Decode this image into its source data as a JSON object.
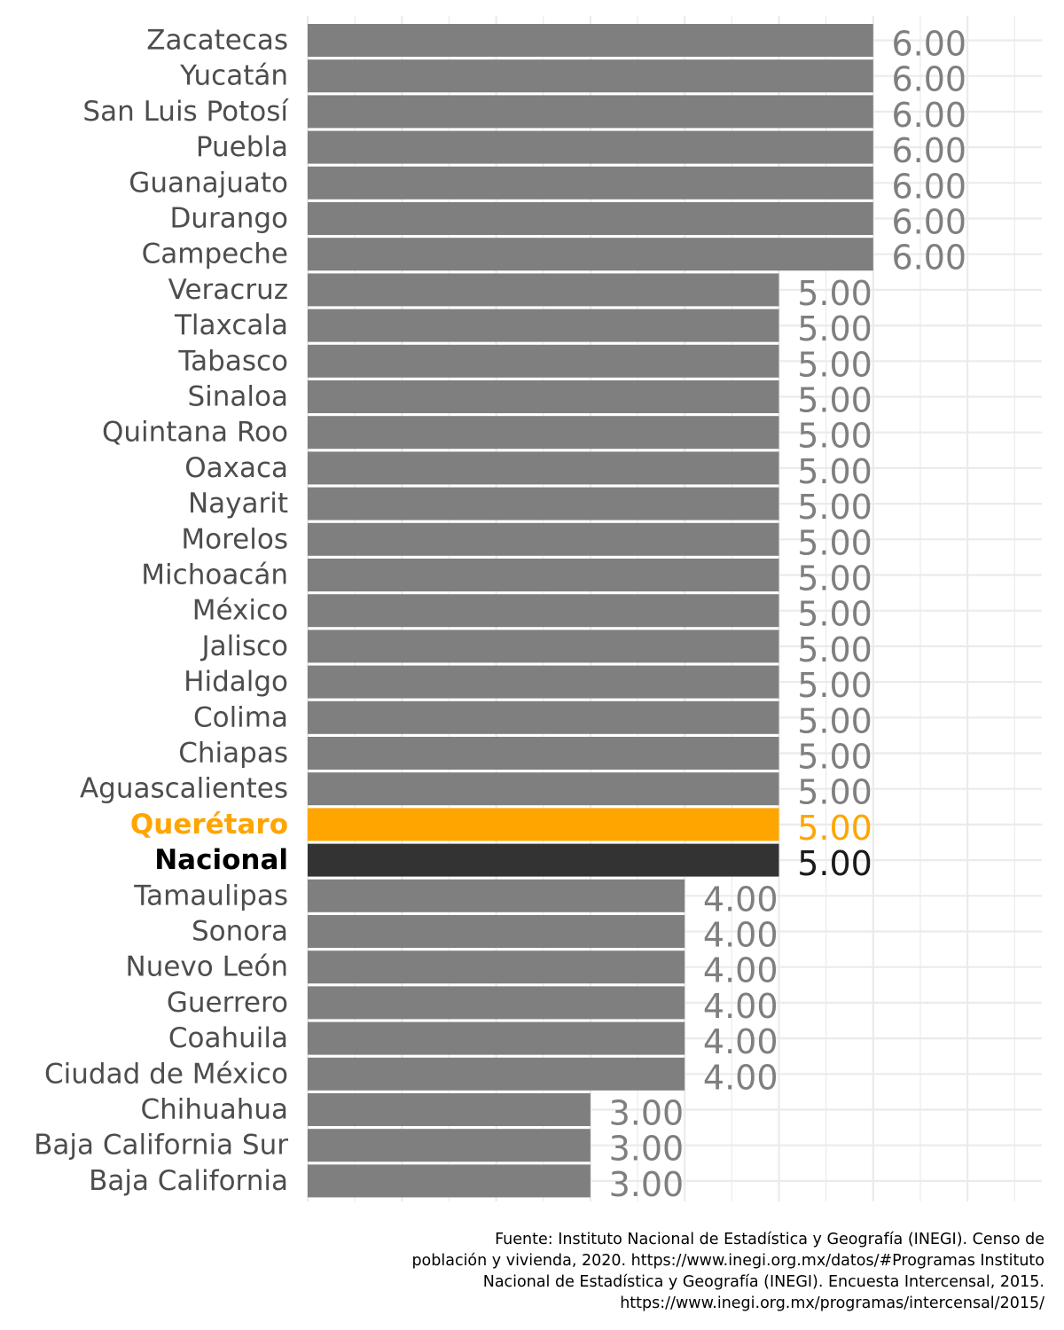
{
  "chart_data": {
    "type": "bar",
    "orientation": "horizontal",
    "categories": [
      "Zacatecas",
      "Yucatán",
      "San Luis Potosí",
      "Puebla",
      "Guanajuato",
      "Durango",
      "Campeche",
      "Veracruz",
      "Tlaxcala",
      "Tabasco",
      "Sinaloa",
      "Quintana Roo",
      "Oaxaca",
      "Nayarit",
      "Morelos",
      "Michoacán",
      "México",
      "Jalisco",
      "Hidalgo",
      "Colima",
      "Chiapas",
      "Aguascalientes",
      "Querétaro",
      "Nacional",
      "Tamaulipas",
      "Sonora",
      "Nuevo León",
      "Guerrero",
      "Coahuila",
      "Ciudad de México",
      "Chihuahua",
      "Baja California Sur",
      "Baja California"
    ],
    "values": [
      6,
      6,
      6,
      6,
      6,
      6,
      6,
      5,
      5,
      5,
      5,
      5,
      5,
      5,
      5,
      5,
      5,
      5,
      5,
      5,
      5,
      5,
      5,
      5,
      4,
      4,
      4,
      4,
      4,
      4,
      3,
      3,
      3
    ],
    "value_labels": [
      "6.00",
      "6.00",
      "6.00",
      "6.00",
      "6.00",
      "6.00",
      "6.00",
      "5.00",
      "5.00",
      "5.00",
      "5.00",
      "5.00",
      "5.00",
      "5.00",
      "5.00",
      "5.00",
      "5.00",
      "5.00",
      "5.00",
      "5.00",
      "5.00",
      "5.00",
      "5.00",
      "5.00",
      "4.00",
      "4.00",
      "4.00",
      "4.00",
      "4.00",
      "4.00",
      "3.00",
      "3.00",
      "3.00"
    ],
    "highlight": "Querétaro",
    "national": "Nacional",
    "xlim": [
      0,
      7.75
    ],
    "grid": true,
    "colors": {
      "default": "#7f7f7f",
      "highlight": "#FFA500",
      "national": "#333333",
      "grid": "#ebebeb"
    }
  },
  "caption": {
    "lines": [
      "Fuente: Instituto Nacional de Estadística y Geografía (INEGI). Censo de",
      "población y vivienda, 2020. https://www.inegi.org.mx/datos/#Programas Instituto",
      "Nacional de Estadística y Geografía (INEGI). Encuesta Intercensal, 2015.",
      "https://www.inegi.org.mx/programas/intercensal/2015/"
    ]
  }
}
